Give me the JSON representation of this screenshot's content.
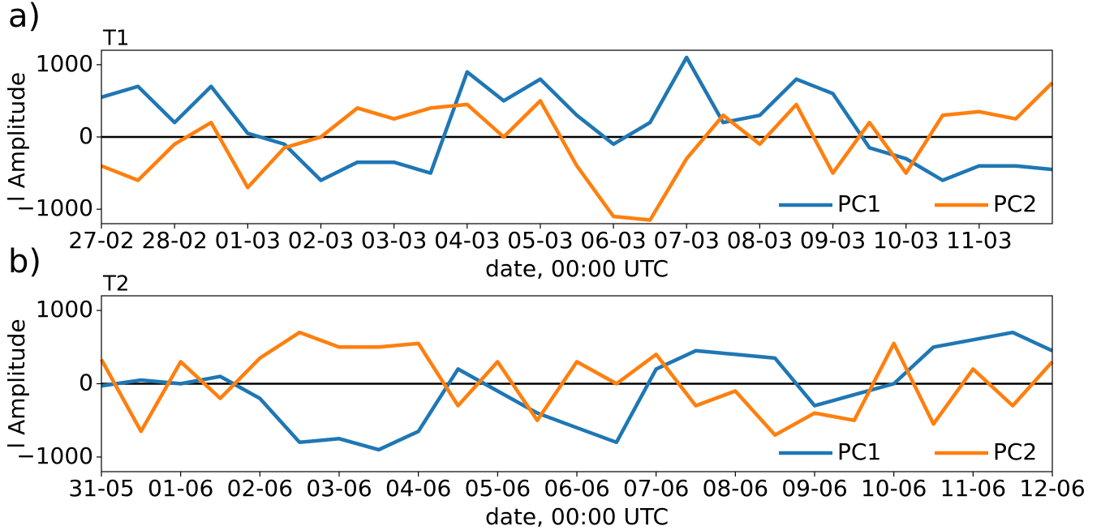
{
  "chart_data": [
    {
      "type": "line",
      "panel_label": "a)",
      "title": "T1",
      "ylabel": "l Amplitude",
      "xlabel": "date, 00:00 UTC",
      "x": [
        0,
        0.5,
        1,
        1.5,
        2,
        2.5,
        3,
        3.5,
        4,
        4.5,
        5,
        5.5,
        6,
        6.5,
        7,
        7.5,
        8,
        8.5,
        9,
        9.5,
        10,
        10.5,
        11,
        11.5,
        12,
        12.5,
        13
      ],
      "series": [
        {
          "name": "PC1",
          "color": "#1f77b4",
          "values": [
            550,
            700,
            200,
            700,
            50,
            -100,
            -600,
            -350,
            -350,
            -500,
            900,
            500,
            800,
            300,
            -100,
            200,
            1100,
            200,
            300,
            800,
            600,
            -150,
            -300,
            -600,
            -400,
            -400,
            -450
          ]
        },
        {
          "name": "PC2",
          "color": "#ff7f0e",
          "values": [
            -400,
            -600,
            -100,
            200,
            -700,
            -150,
            0,
            400,
            250,
            400,
            450,
            0,
            500,
            -400,
            -1100,
            -1150,
            -300,
            300,
            -100,
            450,
            -500,
            200,
            -500,
            300,
            350,
            250,
            750
          ]
        }
      ],
      "xlim": [
        0,
        13
      ],
      "xticks": [
        {
          "value": 0,
          "label": "27-02"
        },
        {
          "value": 1,
          "label": "28-02"
        },
        {
          "value": 2,
          "label": "01-03"
        },
        {
          "value": 3,
          "label": "02-03"
        },
        {
          "value": 4,
          "label": "03-03"
        },
        {
          "value": 5,
          "label": "04-03"
        },
        {
          "value": 6,
          "label": "05-03"
        },
        {
          "value": 7,
          "label": "06-03"
        },
        {
          "value": 8,
          "label": "07-03"
        },
        {
          "value": 9,
          "label": "08-03"
        },
        {
          "value": 10,
          "label": "09-03"
        },
        {
          "value": 11,
          "label": "10-03"
        },
        {
          "value": 12,
          "label": "11-03"
        }
      ],
      "ylim": [
        -1200,
        1200
      ],
      "yticks": [
        {
          "value": -1000,
          "label": "−1000"
        },
        0,
        1000
      ],
      "hlines": [
        0
      ],
      "legend": "lower right"
    },
    {
      "type": "line",
      "panel_label": "b)",
      "title": "T2",
      "ylabel": "l Amplitude",
      "xlabel": "date, 00:00 UTC",
      "x": [
        0,
        0.5,
        1,
        1.5,
        2,
        2.5,
        3,
        3.5,
        4,
        4.5,
        5,
        5.5,
        6,
        6.5,
        7,
        7.5,
        8,
        8.5,
        9,
        9.5,
        10,
        10.5,
        11,
        11.5,
        12
      ],
      "series": [
        {
          "name": "PC1",
          "color": "#1f77b4",
          "values": [
            -30,
            50,
            0,
            100,
            -200,
            -800,
            -750,
            -900,
            -650,
            200,
            -100,
            -400,
            -600,
            -800,
            200,
            450,
            400,
            350,
            -300,
            -150,
            0,
            500,
            600,
            700,
            450
          ]
        },
        {
          "name": "PC2",
          "color": "#ff7f0e",
          "values": [
            330,
            -650,
            300,
            -200,
            350,
            700,
            500,
            500,
            550,
            -300,
            300,
            -500,
            300,
            0,
            400,
            -300,
            -100,
            -700,
            -400,
            -500,
            550,
            -550,
            200,
            -300,
            300
          ]
        }
      ],
      "xlim": [
        0,
        12
      ],
      "xticks": [
        {
          "value": 0,
          "label": "31-05"
        },
        {
          "value": 1,
          "label": "01-06"
        },
        {
          "value": 2,
          "label": "02-06"
        },
        {
          "value": 3,
          "label": "03-06"
        },
        {
          "value": 4,
          "label": "04-06"
        },
        {
          "value": 5,
          "label": "05-06"
        },
        {
          "value": 6,
          "label": "06-06"
        },
        {
          "value": 7,
          "label": "07-06"
        },
        {
          "value": 8,
          "label": "08-06"
        },
        {
          "value": 9,
          "label": "09-06"
        },
        {
          "value": 10,
          "label": "10-06"
        },
        {
          "value": 11,
          "label": "11-06"
        },
        {
          "value": 12,
          "label": "12-06"
        }
      ],
      "ylim": [
        -1200,
        1200
      ],
      "yticks": [
        {
          "value": -1000,
          "label": "−1000"
        },
        0,
        1000
      ],
      "hlines": [
        0
      ],
      "legend": "lower right"
    }
  ]
}
